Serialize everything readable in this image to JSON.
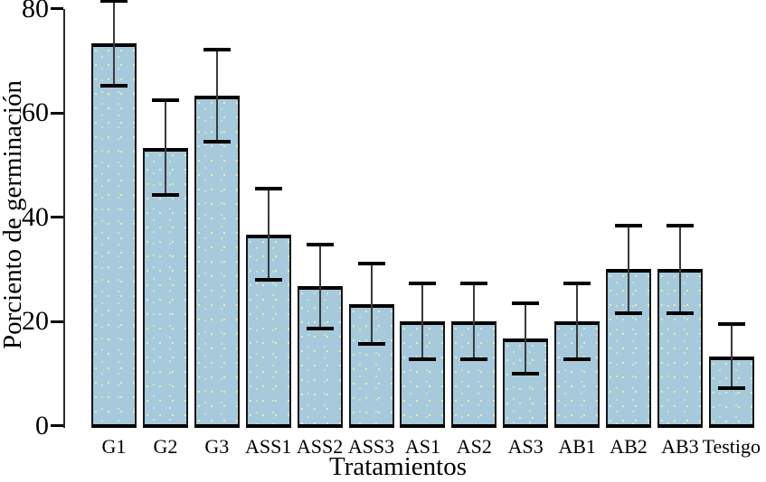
{
  "chart_data": {
    "type": "bar",
    "title": "",
    "xlabel": "Tratamientos",
    "ylabel": "Porciento de germinación",
    "categories": [
      "G1",
      "G2",
      "G3",
      "ASS1",
      "ASS2",
      "ASS3",
      "AS1",
      "AS2",
      "AS3",
      "AB1",
      "AB2",
      "AB3",
      "Testigo"
    ],
    "values": [
      73.3,
      53.3,
      63.3,
      36.7,
      26.7,
      23.3,
      20,
      20,
      16.7,
      20,
      30,
      30,
      13.3
    ],
    "errors": [
      8.1,
      9.1,
      8.8,
      8.8,
      8.1,
      7.7,
      7.3,
      7.3,
      6.8,
      7.3,
      8.4,
      8.4,
      6.2
    ],
    "yticks": [
      0,
      20,
      40,
      60,
      80
    ],
    "ytick_labels": [
      "0",
      "20",
      "40",
      "60",
      "80"
    ],
    "ylim": [
      0,
      82
    ],
    "grid": false,
    "legend": false,
    "colors": {
      "bar_fill": "#a6cadc",
      "bar_border": "#000000",
      "error_bar": "#1a1a1a",
      "axis": "#2b2b2b",
      "text": "#000000",
      "background": "#ffffff"
    }
  }
}
